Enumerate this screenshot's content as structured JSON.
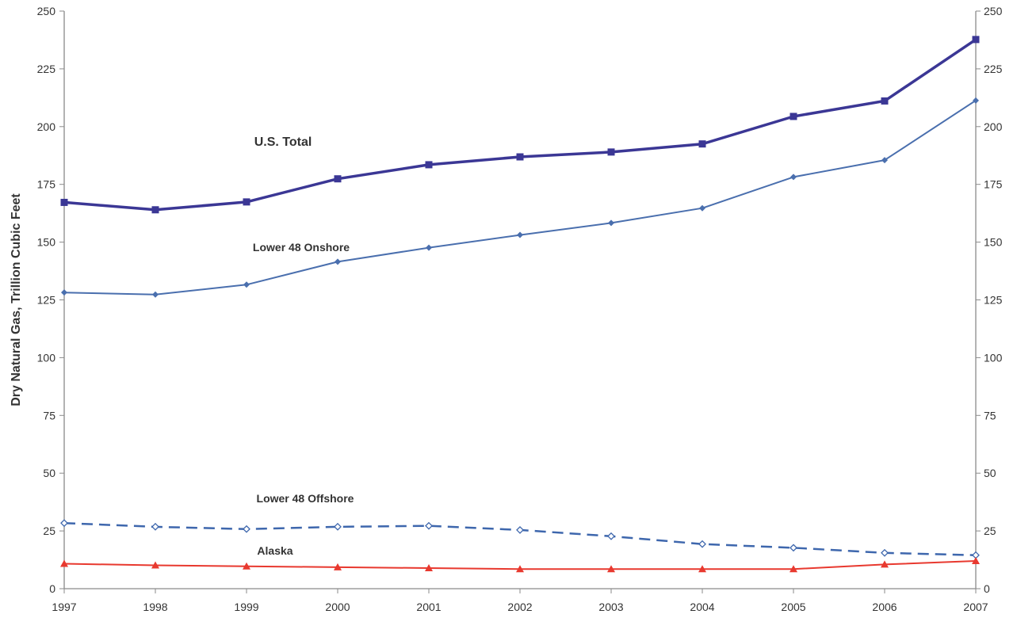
{
  "chart_data": {
    "type": "line",
    "title": "",
    "xlabel": "",
    "ylabel": "Dry Natural Gas, Trillion Cubic Feet",
    "x": [
      "1997",
      "1998",
      "1999",
      "2000",
      "2001",
      "2002",
      "2003",
      "2004",
      "2005",
      "2006",
      "2007"
    ],
    "ylim": [
      0,
      250
    ],
    "yticks": [
      0,
      25,
      50,
      75,
      100,
      125,
      150,
      175,
      200,
      225,
      250
    ],
    "y_axis_right": true,
    "grid": false,
    "legend": "none (series labelled directly on plot)",
    "series": [
      {
        "name": "U.S. Total",
        "values": [
          167.2,
          164.0,
          167.4,
          177.4,
          183.5,
          186.9,
          189.0,
          192.5,
          204.4,
          211.1,
          237.7
        ],
        "color": "#3b3795",
        "marker": "square",
        "line": "solid-thick"
      },
      {
        "name": "Lower 48 Onshore",
        "values": [
          128.2,
          127.3,
          131.6,
          141.5,
          147.6,
          153.1,
          158.3,
          164.7,
          178.2,
          185.5,
          211.3
        ],
        "color": "#4a6fae",
        "marker": "diamond",
        "line": "solid"
      },
      {
        "name": "Lower 48 Offshore",
        "values": [
          28.4,
          26.8,
          25.8,
          26.8,
          27.2,
          25.4,
          22.7,
          19.3,
          17.7,
          15.5,
          14.5
        ],
        "color": "#3e67ad",
        "marker": "diamond-open",
        "line": "dashed"
      },
      {
        "name": "Alaska",
        "values": [
          10.8,
          10.1,
          9.7,
          9.3,
          8.9,
          8.5,
          8.5,
          8.5,
          8.5,
          10.5,
          12.0
        ],
        "color": "#e8392f",
        "marker": "triangle",
        "line": "solid"
      }
    ]
  }
}
